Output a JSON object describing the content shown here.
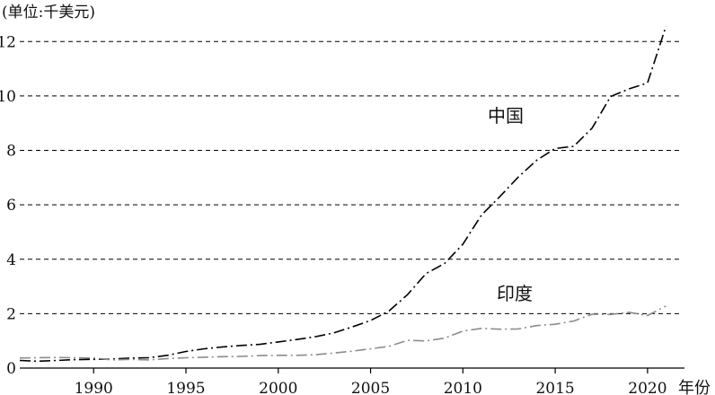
{
  "chart_data": {
    "type": "line",
    "unit_label": "(单位:千美元)",
    "xlabel": "年份",
    "ylabel": "",
    "xlim": [
      1986,
      2022
    ],
    "ylim": [
      0,
      13
    ],
    "x_ticks": [
      1990,
      1995,
      2000,
      2005,
      2010,
      2015,
      2020
    ],
    "y_ticks": [
      0,
      2,
      4,
      6,
      8,
      10,
      12
    ],
    "grid": "horizontal-dashed",
    "series": [
      {
        "name": "中国",
        "color": "#000000",
        "line_style": "dash-dot",
        "x": [
          1986,
          1987,
          1988,
          1989,
          1990,
          1991,
          1992,
          1993,
          1994,
          1995,
          1996,
          1997,
          1998,
          1999,
          2000,
          2001,
          2002,
          2003,
          2004,
          2005,
          2006,
          2007,
          2008,
          2009,
          2010,
          2011,
          2012,
          2013,
          2014,
          2015,
          2016,
          2017,
          2018,
          2019,
          2020,
          2021
        ],
        "values": [
          0.28,
          0.25,
          0.28,
          0.31,
          0.32,
          0.33,
          0.37,
          0.38,
          0.47,
          0.61,
          0.71,
          0.78,
          0.83,
          0.87,
          0.96,
          1.05,
          1.15,
          1.29,
          1.51,
          1.75,
          2.1,
          2.7,
          3.47,
          3.84,
          4.55,
          5.62,
          6.3,
          7.02,
          7.64,
          8.07,
          8.15,
          8.82,
          9.98,
          10.26,
          10.48,
          12.56
        ]
      },
      {
        "name": "印度",
        "color": "#8c8c8c",
        "line_style": "dash-dot",
        "x": [
          1986,
          1987,
          1988,
          1989,
          1990,
          1991,
          1992,
          1993,
          1994,
          1995,
          1996,
          1997,
          1998,
          1999,
          2000,
          2001,
          2002,
          2003,
          2004,
          2005,
          2006,
          2007,
          2008,
          2009,
          2010,
          2011,
          2012,
          2013,
          2014,
          2015,
          2016,
          2017,
          2018,
          2019,
          2020,
          2021
        ],
        "values": [
          0.37,
          0.38,
          0.39,
          0.38,
          0.37,
          0.3,
          0.32,
          0.3,
          0.35,
          0.38,
          0.4,
          0.42,
          0.43,
          0.46,
          0.47,
          0.47,
          0.49,
          0.55,
          0.62,
          0.71,
          0.8,
          1.02,
          1.0,
          1.1,
          1.36,
          1.46,
          1.43,
          1.44,
          1.56,
          1.61,
          1.73,
          1.98,
          1.97,
          2.05,
          1.93,
          2.28
        ]
      }
    ],
    "annotations": [
      {
        "text": "中国",
        "series": 0
      },
      {
        "text": "印度",
        "series": 1
      }
    ]
  }
}
